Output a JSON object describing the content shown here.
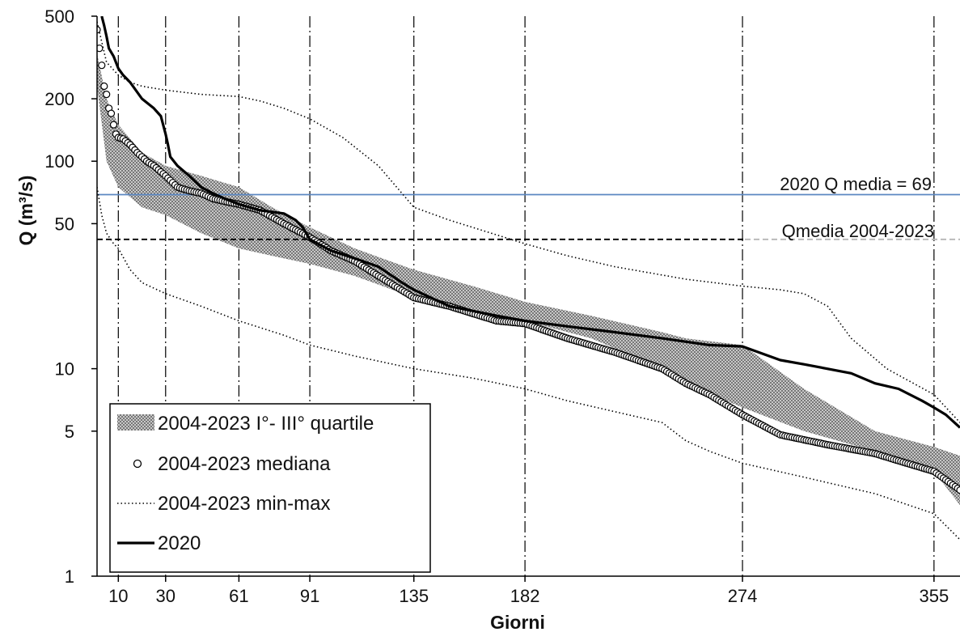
{
  "chart_data": {
    "type": "line",
    "xlabel": "Giorni",
    "ylabel": "Q (m³/s)",
    "y_scale": "log",
    "xlim": [
      1,
      366
    ],
    "ylim": [
      1,
      500
    ],
    "x_ticks": [
      10,
      30,
      61,
      91,
      135,
      182,
      274,
      355
    ],
    "y_ticks": [
      1,
      5,
      10,
      50,
      100,
      200,
      500
    ],
    "grid": "vertical dash-dot lines at x ticks",
    "legend_position": "bottom-left",
    "series": [
      {
        "name": "2004-2023 I°- III° quartile",
        "style": "band",
        "x": [
          1,
          5,
          10,
          20,
          30,
          45,
          61,
          75,
          91,
          110,
          135,
          160,
          182,
          210,
          240,
          250,
          274,
          300,
          330,
          355,
          366
        ],
        "low": [
          230,
          100,
          75,
          60,
          55,
          45,
          38,
          35,
          32,
          28,
          22,
          19,
          17,
          14,
          10,
          8.5,
          6.5,
          5.0,
          4.0,
          3.2,
          2.2
        ],
        "high": [
          330,
          200,
          150,
          110,
          95,
          85,
          75,
          60,
          48,
          38,
          30,
          25,
          21,
          18,
          15,
          14,
          13,
          8.0,
          5.0,
          4.2,
          3.8
        ]
      },
      {
        "name": "2004-2023 mediana",
        "style": "markers",
        "x": [
          1,
          2,
          3,
          4,
          5,
          6,
          7,
          8,
          9,
          10,
          12,
          15,
          18,
          20,
          22,
          25,
          30,
          35,
          40,
          45,
          50,
          55,
          61,
          70,
          80,
          91,
          100,
          110,
          120,
          135,
          150,
          170,
          182,
          200,
          220,
          240,
          250,
          260,
          274,
          290,
          310,
          330,
          340,
          355,
          366
        ],
        "y": [
          430,
          350,
          290,
          230,
          210,
          180,
          170,
          150,
          135,
          130,
          128,
          120,
          110,
          105,
          100,
          95,
          85,
          75,
          72,
          70,
          66,
          64,
          62,
          58,
          50,
          43,
          37,
          33,
          28,
          22,
          20,
          17,
          16.5,
          14,
          12,
          10,
          8.5,
          7.5,
          6.0,
          4.8,
          4.3,
          3.9,
          3.6,
          3.2,
          2.6
        ]
      },
      {
        "name": "2004-2023 min-max",
        "style": "dotted",
        "x_max": [
          1,
          5,
          10,
          15,
          20,
          30,
          45,
          61,
          70,
          80,
          91,
          105,
          120,
          135,
          150,
          182,
          200,
          220,
          250,
          274,
          290,
          300,
          310,
          320,
          335,
          355,
          366
        ],
        "max": [
          470,
          300,
          260,
          240,
          230,
          220,
          210,
          205,
          195,
          180,
          160,
          130,
          95,
          60,
          52,
          40,
          35,
          31,
          27,
          25,
          24,
          23,
          20,
          14,
          10,
          7.5,
          5.5
        ],
        "x_min": [
          1,
          3,
          5,
          8,
          10,
          15,
          20,
          30,
          45,
          61,
          80,
          91,
          110,
          135,
          160,
          182,
          200,
          240,
          250,
          260,
          274,
          300,
          330,
          355,
          366
        ],
        "min": [
          75,
          55,
          45,
          40,
          38,
          30,
          26,
          23,
          20,
          17,
          14.5,
          13,
          11.5,
          10,
          9,
          8,
          7,
          5.5,
          4.5,
          4,
          3.5,
          3,
          2.5,
          2.0,
          1.5
        ]
      },
      {
        "name": "2020",
        "style": "solid",
        "x": [
          3,
          4,
          5,
          6,
          8,
          10,
          12,
          15,
          20,
          25,
          28,
          30,
          31,
          32,
          35,
          40,
          45,
          50,
          55,
          61,
          70,
          80,
          85,
          88,
          91,
          100,
          110,
          120,
          130,
          135,
          150,
          170,
          182,
          200,
          220,
          240,
          260,
          274,
          290,
          300,
          320,
          330,
          340,
          350,
          355,
          360,
          366
        ],
        "y": [
          500,
          450,
          400,
          350,
          320,
          280,
          260,
          240,
          200,
          180,
          165,
          135,
          120,
          105,
          95,
          85,
          75,
          70,
          66,
          62,
          58,
          56,
          52,
          48,
          42,
          37,
          34,
          31,
          26,
          24,
          20,
          18,
          17,
          16,
          15,
          14,
          13,
          12.8,
          11,
          10.5,
          9.5,
          8.5,
          8,
          7,
          6.5,
          6,
          5.2
        ]
      }
    ],
    "reference_lines": [
      {
        "y": 69,
        "label": "2020 Q media =  69",
        "color": "#5b87c2"
      },
      {
        "y": 42,
        "label": "Qmedia 2004-2023",
        "color": "#000000"
      }
    ]
  }
}
